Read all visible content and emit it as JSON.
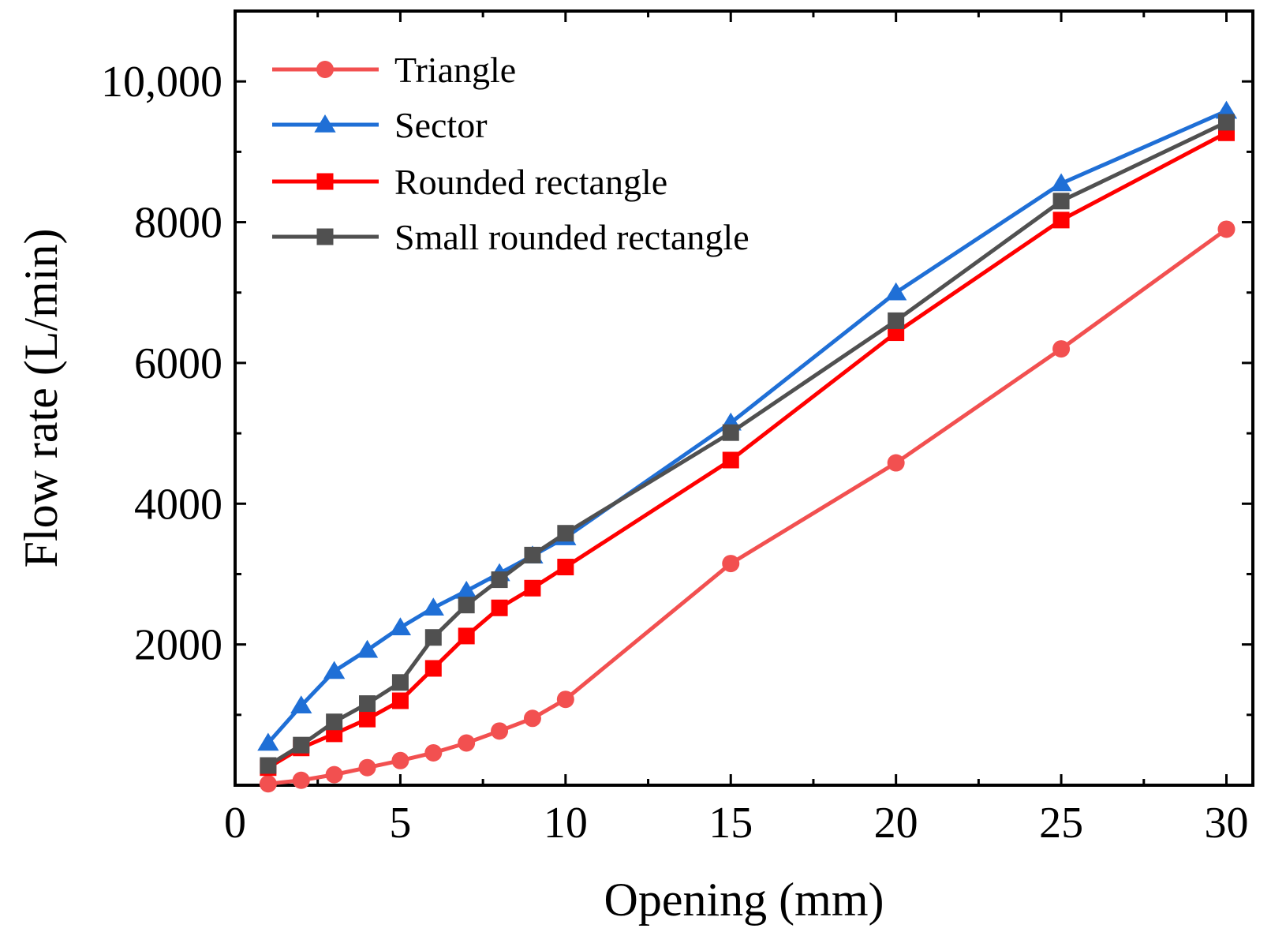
{
  "chart_data": {
    "type": "line",
    "title": "",
    "xlabel": "Opening (mm)",
    "ylabel": "Flow rate (L/min)",
    "xlim": [
      0,
      30.8
    ],
    "ylim": [
      0,
      11000
    ],
    "xticks": [
      0,
      5,
      10,
      15,
      20,
      25,
      30
    ],
    "xtick_labels": [
      "0",
      "5",
      "10",
      "15",
      "20",
      "25",
      "30"
    ],
    "yticks": [
      2000,
      4000,
      6000,
      8000,
      10000
    ],
    "ytick_labels": [
      "2000",
      "4000",
      "6000",
      "8000",
      "10,000"
    ],
    "grid": false,
    "legend_position": "top-left",
    "series": [
      {
        "name": "Triangle",
        "color": "#f25050",
        "marker": "circle",
        "x": [
          1,
          2,
          3,
          4,
          5,
          6,
          7,
          8,
          9,
          10,
          15,
          20,
          25,
          30
        ],
        "values": [
          20,
          70,
          150,
          250,
          350,
          460,
          600,
          770,
          950,
          1220,
          3150,
          4580,
          6200,
          7900
        ]
      },
      {
        "name": "Sector",
        "color": "#1f6fd6",
        "marker": "triangle",
        "x": [
          1,
          2,
          3,
          4,
          5,
          6,
          7,
          8,
          9,
          10,
          15,
          20,
          25,
          30
        ],
        "values": [
          600,
          1130,
          1620,
          1920,
          2240,
          2520,
          2760,
          3010,
          3260,
          3520,
          5150,
          7000,
          8550,
          9580
        ]
      },
      {
        "name": "Rounded rectangle",
        "color": "#ff0000",
        "marker": "square",
        "x": [
          1,
          2,
          3,
          4,
          5,
          6,
          7,
          8,
          9,
          10,
          15,
          20,
          25,
          30
        ],
        "values": [
          250,
          530,
          730,
          940,
          1200,
          1660,
          2120,
          2520,
          2800,
          3100,
          4620,
          6430,
          8030,
          9270
        ]
      },
      {
        "name": "Small rounded rectangle",
        "color": "#505050",
        "marker": "square",
        "x": [
          1,
          2,
          3,
          4,
          5,
          6,
          7,
          8,
          9,
          10,
          15,
          20,
          25,
          30
        ],
        "values": [
          280,
          570,
          900,
          1160,
          1460,
          2100,
          2560,
          2920,
          3270,
          3580,
          5010,
          6600,
          8300,
          9420
        ]
      }
    ]
  }
}
